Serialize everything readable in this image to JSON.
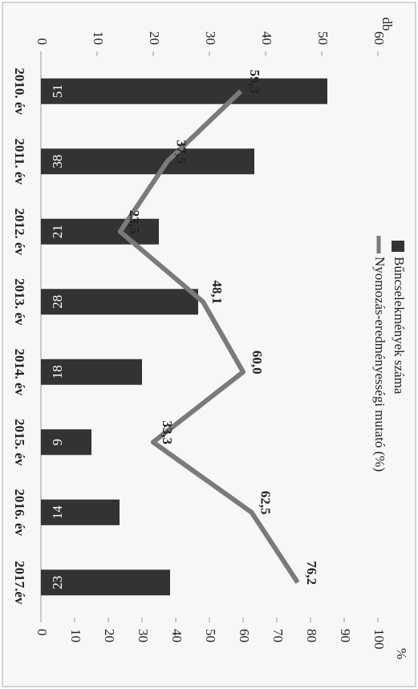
{
  "chart_data": {
    "type": "bar",
    "y_label": "db",
    "y2_label": "%",
    "categories": [
      "2010. év",
      "2011. év",
      "2012. év",
      "2013. év",
      "2014. év",
      "2015. év",
      "2016. év",
      "2017.év"
    ],
    "series": [
      {
        "name": "Bűncselekmények száma",
        "type": "bar",
        "color": "#333333",
        "values": [
          51,
          38,
          21,
          28,
          18,
          9,
          14,
          23
        ]
      },
      {
        "name": "Nyomozás-eredményességi mutató (%)",
        "type": "line",
        "axis": "y2",
        "color": "#7a7a7a",
        "values": [
          59.3,
          37.5,
          23.5,
          48.1,
          60.0,
          33.3,
          62.5,
          76.2
        ],
        "value_labels": [
          "59,3",
          "37,5",
          "23,5",
          "48,1",
          "60,0",
          "33,3",
          "62,5",
          "76,2"
        ]
      }
    ],
    "ylim": [
      0,
      60
    ],
    "yticks": [
      0,
      10,
      20,
      30,
      40,
      50,
      60
    ],
    "y2lim": [
      0,
      100
    ],
    "y2ticks": [
      0,
      10,
      20,
      30,
      40,
      50,
      60,
      70,
      80,
      90,
      100
    ]
  }
}
